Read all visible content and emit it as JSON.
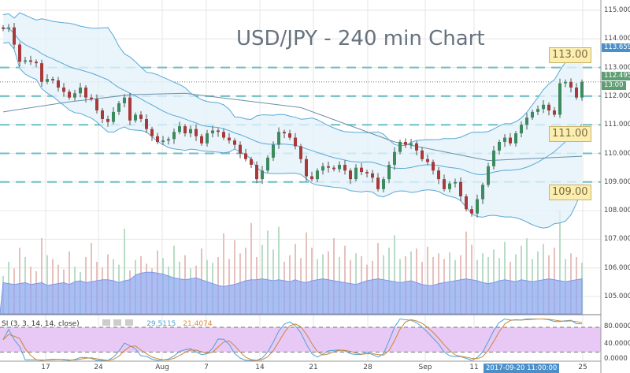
{
  "title": "USD/JPY - 240 min Chart",
  "chart_data": {
    "type": "candlestick",
    "title": "USD/JPY - 240 min Chart",
    "y_axis": {
      "ticks": [
        "115.000",
        "114.000",
        "113.000",
        "112.000",
        "111.000",
        "110.000",
        "109.000",
        "108.000",
        "107.000",
        "106.000",
        "105.000"
      ],
      "ylim": [
        104.4,
        115.4
      ]
    },
    "x_axis": {
      "ticks": [
        "17",
        "24",
        "Aug",
        "7",
        "14",
        "21",
        "28",
        "Sep",
        "11",
        "25"
      ]
    },
    "grid": true,
    "closes": [
      114.35,
      114.4,
      113.8,
      113.2,
      113.25,
      113.2,
      113.15,
      112.5,
      112.6,
      112.55,
      112.3,
      112.15,
      111.95,
      112.1,
      112.3,
      111.95,
      111.9,
      111.5,
      111.2,
      111.1,
      111.45,
      111.75,
      111.95,
      111.15,
      111.35,
      111.2,
      110.85,
      110.6,
      110.4,
      110.45,
      110.5,
      110.75,
      110.95,
      110.7,
      110.85,
      110.6,
      110.35,
      110.7,
      110.8,
      110.75,
      110.55,
      110.45,
      110.3,
      110.0,
      109.8,
      109.6,
      109.1,
      109.4,
      109.85,
      110.3,
      110.75,
      110.7,
      110.55,
      110.25,
      109.8,
      109.2,
      109.1,
      109.4,
      109.55,
      109.5,
      109.45,
      109.6,
      109.4,
      109.1,
      109.5,
      109.35,
      109.3,
      109.15,
      108.75,
      109.1,
      109.6,
      110.05,
      110.4,
      110.3,
      110.35,
      110.1,
      109.8,
      109.7,
      109.4,
      109.1,
      108.75,
      108.95,
      109.0,
      108.5,
      108.05,
      107.9,
      108.4,
      108.9,
      109.55,
      110.1,
      110.4,
      110.55,
      110.35,
      110.7,
      111.0,
      111.25,
      111.45,
      111.55,
      111.7,
      111.5,
      111.35,
      112.45,
      112.5,
      112.3,
      111.95,
      112.5
    ],
    "long_ma": [
      [
        0,
        111.45
      ],
      [
        12,
        111.8
      ],
      [
        23,
        112.05
      ],
      [
        33,
        112.1
      ],
      [
        54,
        111.6
      ],
      [
        71,
        110.4
      ],
      [
        88,
        109.75
      ],
      [
        105,
        109.9
      ]
    ],
    "horizontal_levels": [
      113.0,
      112.0,
      111.0,
      110.0,
      109.0
    ],
    "level_tags": [
      "113.00",
      "111.00",
      "109.00"
    ],
    "last_price": "112.495",
    "last_price_line": 112.495,
    "alert_price": "113.659",
    "countdown": "13:00",
    "volume": [
      40,
      55,
      48,
      70,
      60,
      50,
      45,
      80,
      62,
      58,
      52,
      47,
      66,
      50,
      44,
      60,
      75,
      55,
      49,
      63,
      58,
      52,
      90,
      46,
      57,
      61,
      53,
      48,
      67,
      59,
      50,
      72,
      55,
      62,
      48,
      51,
      69,
      57,
      54,
      60,
      85,
      58,
      78,
      64,
      70,
      96,
      60,
      73,
      88,
      68,
      92,
      55,
      62,
      74,
      59,
      86,
      70,
      58,
      63,
      66,
      80,
      60,
      72,
      57,
      64,
      61,
      52,
      56,
      75,
      62,
      70,
      83,
      58,
      61,
      66,
      69,
      55,
      71,
      60,
      64,
      58,
      65,
      57,
      62,
      87,
      73,
      57,
      64,
      60,
      68,
      59,
      76,
      55,
      63,
      72,
      80,
      58,
      66,
      74,
      62,
      70,
      110,
      58,
      64,
      60,
      54
    ],
    "volume_ma": [
      33,
      32,
      31,
      32,
      33,
      31,
      32,
      33,
      30,
      31,
      32,
      33,
      31,
      34,
      35,
      33,
      34,
      35,
      36,
      36,
      35,
      33,
      35,
      36,
      41,
      43,
      44,
      44,
      43,
      42,
      40,
      38,
      37,
      36,
      37,
      38,
      36,
      34,
      32,
      30,
      29,
      30,
      31,
      33,
      35,
      36,
      36,
      37,
      36,
      35,
      36,
      35,
      34,
      36,
      34,
      33,
      35,
      36,
      37,
      36,
      35,
      34,
      33,
      32,
      31,
      33,
      35,
      36,
      37,
      36,
      35,
      34,
      33,
      34,
      35,
      33,
      31,
      30,
      30,
      32,
      33,
      34,
      35,
      36,
      37,
      36,
      35,
      33,
      32,
      33,
      35,
      36,
      35,
      34,
      36,
      35,
      34,
      35,
      36,
      37,
      36,
      35,
      34,
      35,
      36,
      37
    ],
    "stoch": {
      "label": "SI (3, 3, 14, 14, close)",
      "k_value": "29.5115",
      "d_value": "21.4074",
      "ticks": [
        "80.0000",
        "40.0000",
        "0.0000"
      ],
      "upper_band": 80,
      "lower_band": 20
    },
    "crosshair_date": "2017-09-20 11:00:00"
  },
  "colors": {
    "up": "#3c8a5e",
    "down": "#a83a3a",
    "band": "#5aa9d6",
    "level": "#6bbfc9",
    "stoch_k": "#4aa3d8",
    "stoch_d": "#c9883a",
    "stoch_bg": "#e8c8f5",
    "volume_ma": "#8fa8f0"
  }
}
